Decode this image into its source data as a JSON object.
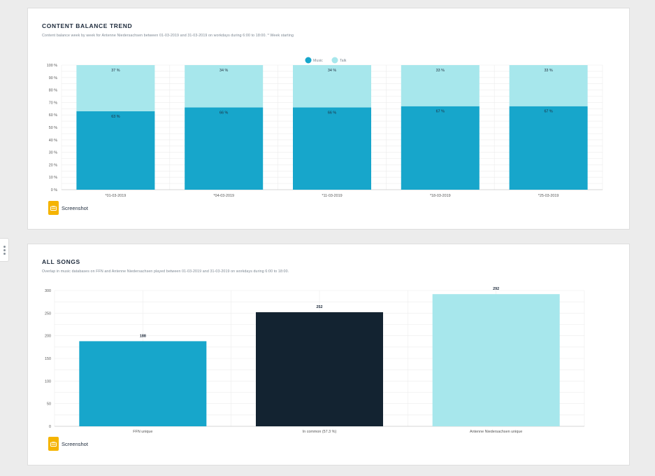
{
  "card1": {
    "title": "CONTENT BALANCE TREND",
    "subtitle": "Content balance week by week for Antenne Niedersachsen between 01-03-2019 and 31-03-2019 on workdays during 6:00 to 18:00. * Week starting",
    "screenshot_label": "Screenshot"
  },
  "card2": {
    "title": "ALL SONGS",
    "subtitle": "Overlap in music databases on FFN and Antenne Niedersachsen played between 01-03-2019 and 31-03-2019 on workdays during 6:00 to 18:00.",
    "screenshot_label": "Screenshot"
  },
  "icons": {
    "screenshot": "camera-icon",
    "side_handle": "more-vertical-icon"
  },
  "chart_data": [
    {
      "type": "bar",
      "stacked": true,
      "categories": [
        "*01-03-2019",
        "*04-03-2019",
        "*11-03-2019",
        "*18-03-2019",
        "*25-03-2019"
      ],
      "series": [
        {
          "name": "Music",
          "values": [
            63,
            66,
            66,
            67,
            67
          ],
          "labels": [
            "63 %",
            "66 %",
            "66 %",
            "67 %",
            "67 %"
          ],
          "color": "#17a6cb"
        },
        {
          "name": "Talk",
          "values": [
            37,
            34,
            34,
            33,
            33
          ],
          "labels": [
            "37 %",
            "34 %",
            "34 %",
            "33 %",
            "33 %"
          ],
          "color": "#a7e7ec"
        }
      ],
      "ylim": [
        0,
        100
      ],
      "yticks": [
        "0 %",
        "10 %",
        "20 %",
        "30 %",
        "40 %",
        "50 %",
        "60 %",
        "70 %",
        "80 %",
        "90 %",
        "100 %"
      ],
      "legend": "top-center",
      "grid": true
    },
    {
      "type": "bar",
      "categories": [
        "FFN unique",
        "In common (57.3 %)",
        "Antenne Niedersachsen unique"
      ],
      "values": [
        188,
        252,
        292
      ],
      "labels": [
        "188",
        "252",
        "292"
      ],
      "colors": [
        "#17a6cb",
        "#132331",
        "#a7e7ec"
      ],
      "ylim": [
        0,
        300
      ],
      "yticks": [
        "0",
        "50",
        "100",
        "150",
        "200",
        "250",
        "300"
      ],
      "grid": true
    }
  ]
}
